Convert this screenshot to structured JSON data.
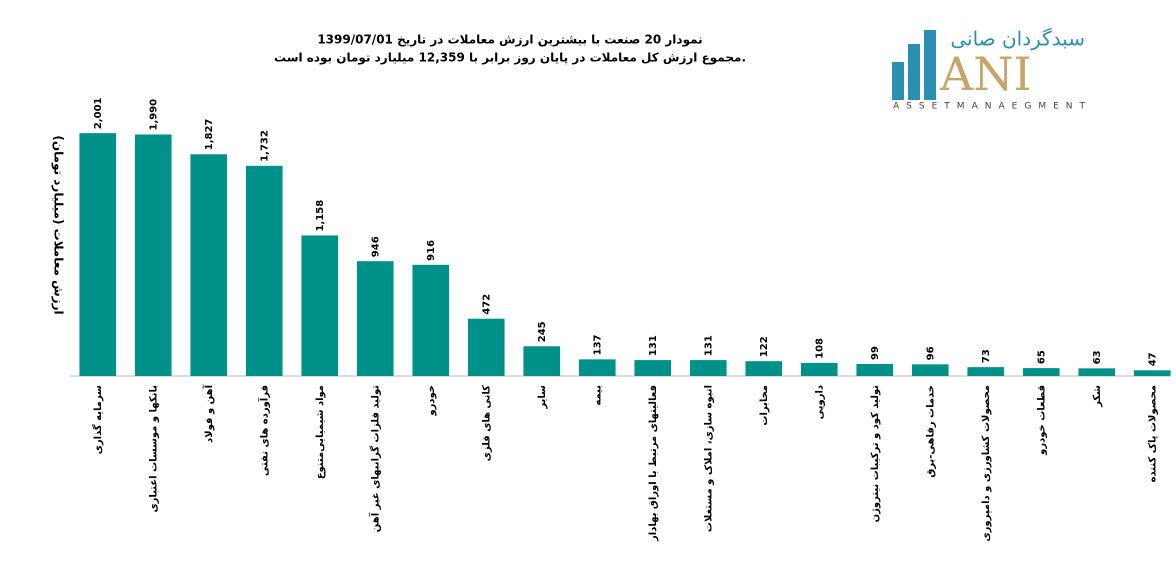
{
  "chart_data": {
    "type": "bar",
    "title": "نمودار  20 صنعت با بیشترین ارزش معاملات در تاریخ 1399/07/01",
    "subtitle": "مجموع ارزش  کل معاملات در پایان روز برابر با 12,359 میلیارد تومان بوده است.",
    "y_label": "ارزش معاملات (میلیارد تومان)",
    "categories": [
      "سرمایه گذاری",
      "بانکها و موسسات اعتباری",
      "آهن و فولاد",
      "فرآورده های نفتی",
      "مواد شیمیایی‌متنوع",
      "تولید فلزات گرانبهای غیر آهن",
      "خودرو",
      "کانی های فلزی",
      "سایر",
      "بیمه",
      "فعالیتهای مرتبط با اوراق بهادار",
      "انبوه سازی، املاک و مستغلات",
      "مخابرات",
      "دارویی",
      "تولید کود و ترکیبات نیتروژن",
      "خدمات رفاهی-برق",
      "محصولات کشاورزی و دامپروری",
      "قطعات خودرو",
      "شکر",
      "محصولات پاک کننده"
    ],
    "values": [
      2001,
      1990,
      1827,
      1732,
      1158,
      946,
      916,
      472,
      245,
      137,
      131,
      131,
      122,
      108,
      99,
      96,
      73,
      65,
      63,
      47
    ],
    "value_labels": [
      "2,001",
      "1,990",
      "1,827",
      "1,732",
      "1,158",
      "946",
      "916",
      "472",
      "245",
      "137",
      "131",
      "131",
      "122",
      "108",
      "99",
      "96",
      "73",
      "65",
      "63",
      "47"
    ],
    "color": "#00918a",
    "ylim": [
      0,
      2200
    ]
  },
  "logo": {
    "name": "سبدگردان صانی",
    "mark": "ANI",
    "tagline": "ASSETMANAEGMENT"
  }
}
